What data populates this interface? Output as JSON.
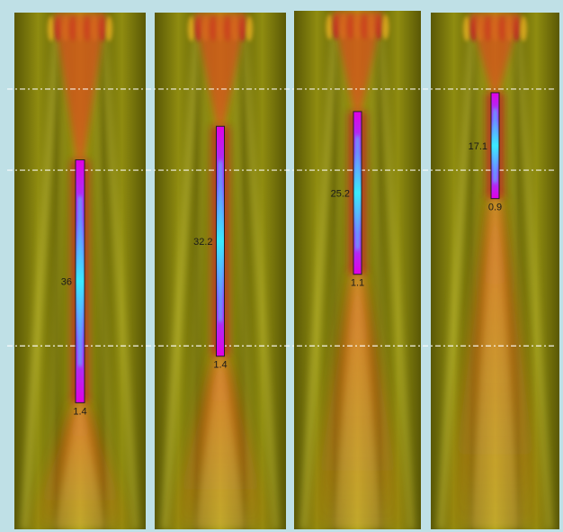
{
  "figure": {
    "frame_color": "#bfe0e6",
    "panel_background": "#6e6a08",
    "field_colors": {
      "dark": "#5f5c06",
      "mid": "#a9a714",
      "bright": "#d7d24a",
      "hot": "#d3501a",
      "deep_red": "#c0182c"
    },
    "beam_colors": {
      "outer": "#e100e6",
      "inner": "#3aa0ff",
      "core": "#40f0ff"
    },
    "guide_line_color": "#ffffff",
    "panels": [
      {
        "name": "panel-1",
        "length_label": "36",
        "width_label": "1.4",
        "focus_start": 0.285,
        "focus_end": 0.755
      },
      {
        "name": "panel-2",
        "length_label": "32.2",
        "width_label": "1.4",
        "focus_start": 0.22,
        "focus_end": 0.665
      },
      {
        "name": "panel-3",
        "length_label": "25.2",
        "width_label": "1.1",
        "focus_start": 0.195,
        "focus_end": 0.51
      },
      {
        "name": "panel-4",
        "length_label": "17.1",
        "width_label": "0.9",
        "focus_start": 0.155,
        "focus_end": 0.36
      }
    ],
    "guide_levels": [
      0.148,
      0.305,
      0.645
    ]
  }
}
